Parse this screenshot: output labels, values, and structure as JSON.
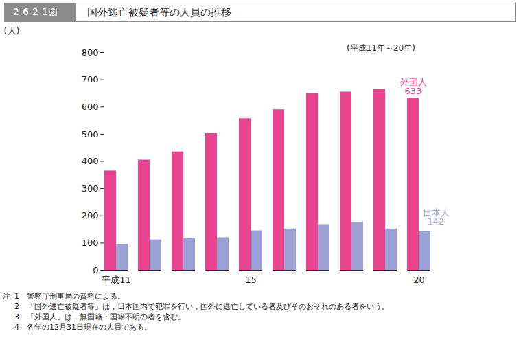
{
  "chart_data": {
    "type": "bar",
    "figure_number": "2-6-2-1図",
    "title": "国外逃亡被疑者等の人員の推移",
    "subtitle": "(平成11年～20年)",
    "y_label": "(人)",
    "categories": [
      "平成11",
      null,
      null,
      null,
      "15",
      null,
      null,
      null,
      null,
      "20"
    ],
    "series": [
      {
        "name": "外国人",
        "color": "#e8448f",
        "values": [
          365,
          405,
          435,
          503,
          557,
          590,
          650,
          655,
          665,
          633
        ]
      },
      {
        "name": "日本人",
        "color": "#9a9fd4",
        "values": [
          95,
          112,
          117,
          120,
          145,
          152,
          168,
          177,
          152,
          142
        ]
      }
    ],
    "ylim": [
      0,
      800
    ],
    "yticks": [
      0,
      100,
      200,
      300,
      400,
      500,
      600,
      700,
      800
    ],
    "grid": false,
    "notes_label": "注",
    "notes": [
      "1　警察庁刑事局の資料による。",
      "2　「国外逃亡被疑者等」は，日本国内で犯罪を行い，国外に逃亡している者及びそのおそれのある者をいう。",
      "3　「外国人」は，無国籍・国籍不明の者を含む。",
      "4　各年の12月31日現在の人員である。"
    ]
  }
}
